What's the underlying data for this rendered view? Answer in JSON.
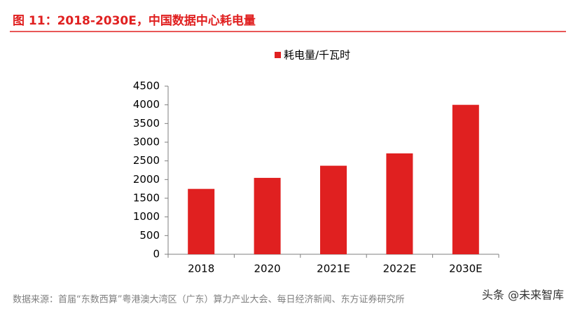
{
  "chart_data": {
    "type": "bar",
    "title": "图 11：2018-2030E，中国数据中心耗电量",
    "categories": [
      "2018",
      "2020",
      "2021E",
      "2022E",
      "2030E"
    ],
    "series": [
      {
        "name": "耗电量/千瓦时",
        "color": "#e02020",
        "values": [
          1750,
          2045,
          2370,
          2700,
          4000
        ]
      }
    ],
    "ylim": [
      0,
      4500
    ],
    "yticks": [
      0,
      500,
      1000,
      1500,
      2000,
      2500,
      3000,
      3500,
      4000,
      4500
    ],
    "grid": false,
    "legend": "top",
    "source": "数据来源：首届“东数西算”粤港澳大湾区（广东）算力产业大会、每日经济新闻、东方证券研究所",
    "watermark": "头条 @未来智库"
  }
}
